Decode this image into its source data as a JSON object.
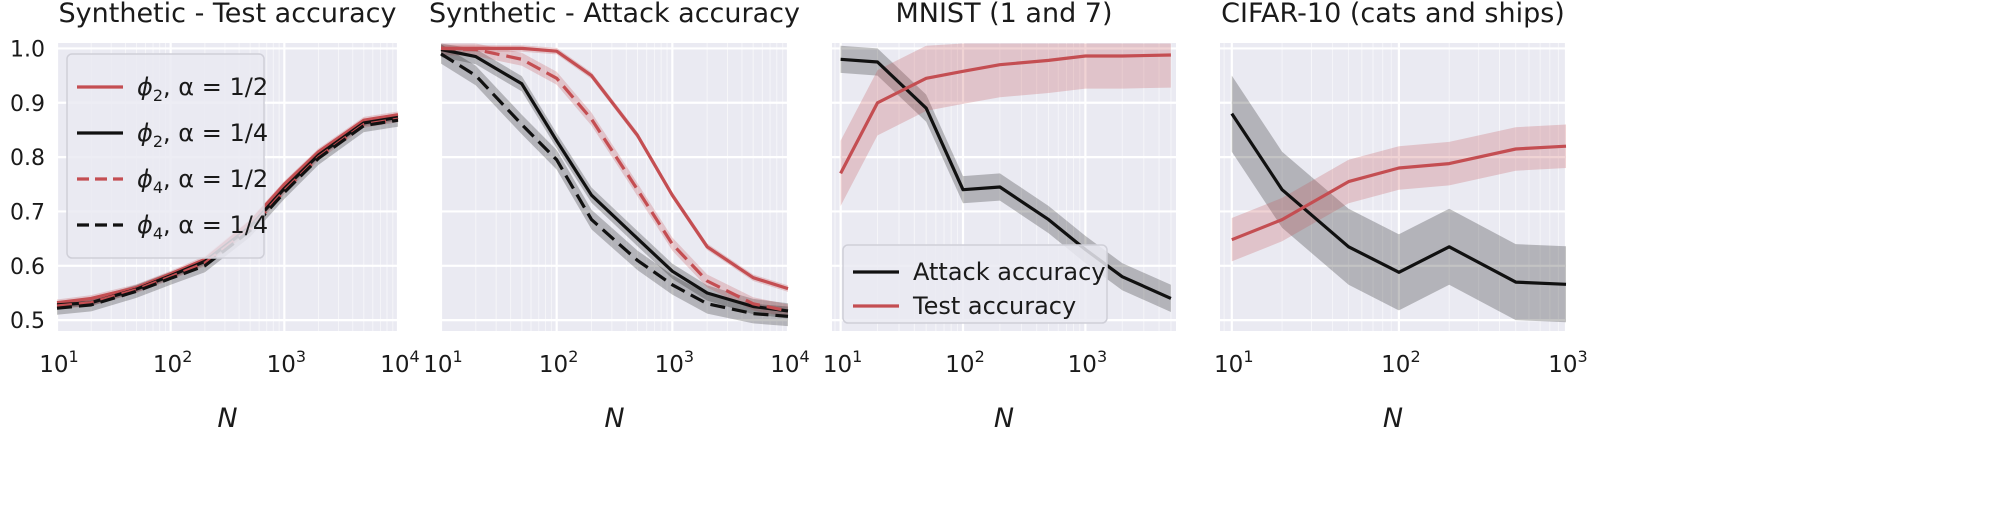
{
  "chart_data": [
    {
      "type": "line",
      "title": "Synthetic - Test accuracy",
      "xlabel": "N",
      "xscale": "log",
      "xlim": [
        10,
        10000
      ],
      "ylim": [
        0.48,
        1.01
      ],
      "xticks": [
        {
          "v": 10,
          "base": "10",
          "exp": "1"
        },
        {
          "v": 100,
          "base": "10",
          "exp": "2"
        },
        {
          "v": 1000,
          "base": "10",
          "exp": "3"
        },
        {
          "v": 10000,
          "base": "10",
          "exp": "4"
        }
      ],
      "yticks": [
        "0.5",
        "0.6",
        "0.7",
        "0.8",
        "0.9",
        "1.0"
      ],
      "grid": true,
      "legend": {
        "placement": "upper-left",
        "entries": [
          {
            "sym": "ϕ",
            "sub": "2",
            "rest": ", α = 1/2",
            "color": "#c44e52",
            "dash": "solid"
          },
          {
            "sym": "ϕ",
            "sub": "2",
            "rest": ", α = 1/4",
            "color": "#111111",
            "dash": "solid"
          },
          {
            "sym": "ϕ",
            "sub": "4",
            "rest": ", α = 1/2",
            "color": "#c44e52",
            "dash": "dashed"
          },
          {
            "sym": "ϕ",
            "sub": "4",
            "rest": ", α = 1/4",
            "color": "#111111",
            "dash": "dashed"
          }
        ]
      },
      "series": [
        {
          "color": "#c44e52",
          "dash": "solid",
          "band": 0.006,
          "x": [
            10,
            20,
            50,
            100,
            200,
            500,
            1000,
            2000,
            5000,
            10000
          ],
          "y": [
            0.532,
            0.54,
            0.56,
            0.585,
            0.612,
            0.68,
            0.75,
            0.81,
            0.868,
            0.878
          ]
        },
        {
          "color": "#111111",
          "dash": "solid",
          "band": 0.006,
          "x": [
            10,
            20,
            50,
            100,
            200,
            500,
            1000,
            2000,
            5000,
            10000
          ],
          "y": [
            0.528,
            0.532,
            0.557,
            0.582,
            0.608,
            0.672,
            0.742,
            0.804,
            0.863,
            0.873
          ]
        },
        {
          "color": "#c44e52",
          "dash": "dashed",
          "band": 0.006,
          "x": [
            10,
            20,
            50,
            100,
            200,
            500,
            1000,
            2000,
            5000,
            10000
          ],
          "y": [
            0.526,
            0.532,
            0.556,
            0.58,
            0.605,
            0.668,
            0.738,
            0.8,
            0.86,
            0.87
          ]
        },
        {
          "color": "#111111",
          "dash": "dashed",
          "band": 0.012,
          "x": [
            10,
            20,
            50,
            100,
            200,
            500,
            1000,
            2000,
            5000,
            10000
          ],
          "y": [
            0.522,
            0.528,
            0.553,
            0.577,
            0.6,
            0.665,
            0.735,
            0.798,
            0.858,
            0.868
          ]
        }
      ]
    },
    {
      "type": "line",
      "title": "Synthetic - Attack accuracy",
      "xlabel": "N",
      "xscale": "log",
      "xlim": [
        10,
        10000
      ],
      "ylim": [
        0.48,
        1.01
      ],
      "xticks": [
        {
          "v": 10,
          "base": "10",
          "exp": "1"
        },
        {
          "v": 100,
          "base": "10",
          "exp": "2"
        },
        {
          "v": 1000,
          "base": "10",
          "exp": "3"
        },
        {
          "v": 10000,
          "base": "10",
          "exp": "4"
        }
      ],
      "yticks": [],
      "grid": true,
      "series": [
        {
          "color": "#c44e52",
          "dash": "solid",
          "band": 0.006,
          "x": [
            10,
            20,
            50,
            100,
            200,
            500,
            1000,
            2000,
            5000,
            10000
          ],
          "y": [
            1.0,
            1.0,
            1.0,
            0.995,
            0.95,
            0.84,
            0.73,
            0.635,
            0.578,
            0.558
          ]
        },
        {
          "color": "#111111",
          "dash": "solid",
          "band": 0.014,
          "x": [
            10,
            20,
            50,
            100,
            200,
            500,
            1000,
            2000,
            5000,
            10000
          ],
          "y": [
            0.998,
            0.985,
            0.935,
            0.83,
            0.73,
            0.65,
            0.59,
            0.55,
            0.525,
            0.517
          ]
        },
        {
          "color": "#c44e52",
          "dash": "dashed",
          "band": 0.012,
          "x": [
            10,
            20,
            50,
            100,
            200,
            500,
            1000,
            2000,
            5000,
            10000
          ],
          "y": [
            1.0,
            0.998,
            0.98,
            0.945,
            0.87,
            0.74,
            0.64,
            0.572,
            0.53,
            0.517
          ]
        },
        {
          "color": "#111111",
          "dash": "dashed",
          "band": 0.018,
          "x": [
            10,
            20,
            50,
            100,
            200,
            500,
            1000,
            2000,
            5000,
            10000
          ],
          "y": [
            0.99,
            0.95,
            0.86,
            0.795,
            0.685,
            0.61,
            0.565,
            0.53,
            0.512,
            0.507
          ]
        }
      ]
    },
    {
      "type": "line",
      "title": "MNIST (1 and 7)",
      "xlabel": "N",
      "xscale": "log",
      "xlim": [
        8.5,
        5500
      ],
      "ylim": [
        0.48,
        1.01
      ],
      "xticks": [
        {
          "v": 10,
          "base": "10",
          "exp": "1"
        },
        {
          "v": 100,
          "base": "10",
          "exp": "2"
        },
        {
          "v": 1000,
          "base": "10",
          "exp": "3"
        }
      ],
      "yticks": [],
      "grid": true,
      "legend": {
        "placement": "lower-left",
        "entries": [
          {
            "text": "Attack accuracy",
            "color": "#111111",
            "dash": "solid"
          },
          {
            "text": "Test accuracy",
            "color": "#c44e52",
            "dash": "solid"
          }
        ]
      },
      "series": [
        {
          "color": "#111111",
          "dash": "solid",
          "band": 0.025,
          "x": [
            10,
            20,
            50,
            100,
            200,
            500,
            1000,
            2000,
            5000
          ],
          "y": [
            0.98,
            0.975,
            0.89,
            0.74,
            0.745,
            0.685,
            0.63,
            0.58,
            0.54
          ]
        },
        {
          "color": "#c44e52",
          "dash": "solid",
          "band": 0.06,
          "x": [
            10,
            20,
            50,
            100,
            200,
            500,
            1000,
            2000,
            5000
          ],
          "y": [
            0.77,
            0.9,
            0.945,
            0.958,
            0.97,
            0.978,
            0.986,
            0.986,
            0.988
          ]
        }
      ]
    },
    {
      "type": "line",
      "title": "CIFAR-10 (cats and ships)",
      "xlabel": "N",
      "xscale": "log",
      "xlim": [
        8.5,
        1000
      ],
      "ylim": [
        0.48,
        1.01
      ],
      "xticks": [
        {
          "v": 10,
          "base": "10",
          "exp": "1"
        },
        {
          "v": 100,
          "base": "10",
          "exp": "2"
        },
        {
          "v": 1000,
          "base": "10",
          "exp": "3"
        }
      ],
      "yticks": [],
      "grid": true,
      "series": [
        {
          "color": "#111111",
          "dash": "solid",
          "band": 0.07,
          "x": [
            10,
            20,
            50,
            100,
            200,
            500,
            1000
          ],
          "y": [
            0.88,
            0.74,
            0.635,
            0.588,
            0.635,
            0.57,
            0.566
          ]
        },
        {
          "color": "#c44e52",
          "dash": "solid",
          "band": 0.04,
          "x": [
            10,
            20,
            50,
            100,
            200,
            500,
            1000
          ],
          "y": [
            0.648,
            0.685,
            0.755,
            0.78,
            0.788,
            0.815,
            0.82
          ]
        }
      ]
    }
  ]
}
